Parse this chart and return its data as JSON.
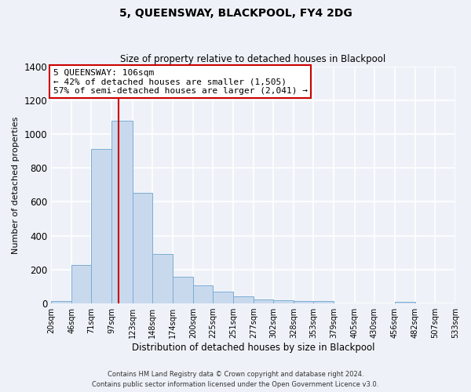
{
  "title": "5, QUEENSWAY, BLACKPOOL, FY4 2DG",
  "subtitle": "Size of property relative to detached houses in Blackpool",
  "xlabel": "Distribution of detached houses by size in Blackpool",
  "ylabel": "Number of detached properties",
  "bar_color": "#c9d9ed",
  "bar_edgecolor": "#7aadd4",
  "background_color": "#eef2f8",
  "grid_color": "#ffffff",
  "vline_x": 106,
  "vline_color": "#cc0000",
  "bin_edges": [
    20,
    46,
    71,
    97,
    123,
    148,
    174,
    200,
    225,
    251,
    277,
    302,
    328,
    353,
    379,
    405,
    430,
    456,
    482,
    507,
    533
  ],
  "bin_labels": [
    "20sqm",
    "46sqm",
    "71sqm",
    "97sqm",
    "123sqm",
    "148sqm",
    "174sqm",
    "200sqm",
    "225sqm",
    "251sqm",
    "277sqm",
    "302sqm",
    "328sqm",
    "353sqm",
    "379sqm",
    "405sqm",
    "430sqm",
    "456sqm",
    "482sqm",
    "507sqm",
    "533sqm"
  ],
  "counts": [
    15,
    225,
    910,
    1080,
    655,
    290,
    157,
    107,
    70,
    40,
    25,
    20,
    15,
    15,
    0,
    0,
    0,
    10,
    0,
    0
  ],
  "ylim": [
    0,
    1400
  ],
  "yticks": [
    0,
    200,
    400,
    600,
    800,
    1000,
    1200,
    1400
  ],
  "annotation_title": "5 QUEENSWAY: 106sqm",
  "annotation_line1": "← 42% of detached houses are smaller (1,505)",
  "annotation_line2": "57% of semi-detached houses are larger (2,041) →",
  "annotation_box_edgecolor": "#cc0000",
  "footer_line1": "Contains HM Land Registry data © Crown copyright and database right 2024.",
  "footer_line2": "Contains public sector information licensed under the Open Government Licence v3.0."
}
